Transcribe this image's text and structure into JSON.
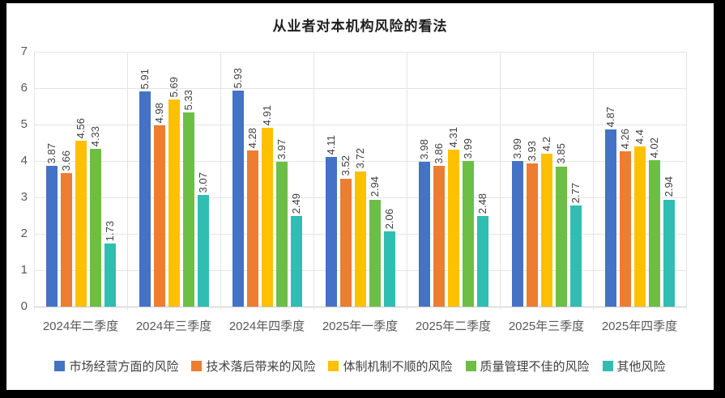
{
  "chart_data": {
    "type": "bar",
    "title": "从业者对本机构风险的看法",
    "categories": [
      "2024年二季度",
      "2024年三季度",
      "2024年四季度",
      "2025年一季度",
      "2025年二季度",
      "2025年三季度",
      "2025年四季度"
    ],
    "series": [
      {
        "name": "市场经营方面的风险",
        "color": "#4472C4",
        "values": [
          3.87,
          5.91,
          5.93,
          4.11,
          3.98,
          3.99,
          4.87
        ]
      },
      {
        "name": "技术落后带来的风险",
        "color": "#ED7D31",
        "values": [
          3.66,
          4.98,
          4.28,
          3.52,
          3.86,
          3.93,
          4.26
        ]
      },
      {
        "name": "体制机制不顺的风险",
        "color": "#FFC000",
        "values": [
          4.56,
          5.69,
          4.91,
          3.72,
          4.31,
          4.2,
          4.4
        ]
      },
      {
        "name": "质量管理不佳的风险",
        "color": "#6DBE45",
        "values": [
          4.33,
          5.33,
          3.97,
          2.94,
          3.99,
          3.85,
          4.02
        ]
      },
      {
        "name": "其他风险",
        "color": "#30BEB2",
        "values": [
          1.73,
          3.07,
          2.49,
          2.06,
          2.48,
          2.77,
          2.94
        ]
      }
    ],
    "ylabel": "",
    "xlabel": "",
    "ylim": [
      0,
      7
    ],
    "ytick_step": 1,
    "grid": "horizontal-and-category-separators",
    "legend_position": "bottom",
    "data_labels": "rotated-vertical-above-bars"
  }
}
